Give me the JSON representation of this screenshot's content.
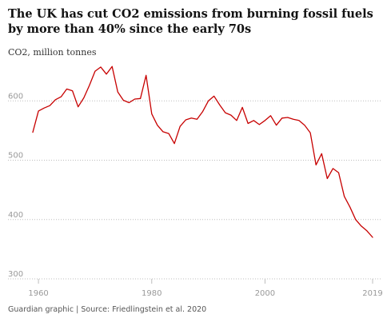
{
  "header": {
    "title": "The UK has cut CO2 emissions from burning fossil fuels by more than 40% since the early 70s",
    "subtitle": "CO2, million tonnes"
  },
  "footer": {
    "source": "Guardian graphic | Source: Friedlingstein et al. 2020"
  },
  "colors": {
    "line": "#c70000",
    "grid": "#bdbdbd",
    "tick_text": "#999999"
  },
  "chart_data": {
    "type": "line",
    "title": "The UK has cut CO2 emissions from burning fossil fuels by more than 40% since the early 70s",
    "ylabel": "CO2, million tonnes",
    "xlabel": "",
    "xlim": [
      1957,
      2020
    ],
    "ylim": [
      300,
      700
    ],
    "x_ticks": [
      1960,
      1980,
      2000,
      2019
    ],
    "y_ticks": [
      300,
      400,
      500,
      600
    ],
    "grid": "horizontal dotted",
    "series": [
      {
        "x": [
          1959,
          1960,
          1961,
          1962,
          1963,
          1964,
          1965,
          1966,
          1967,
          1968,
          1969,
          1970,
          1971,
          1972,
          1973,
          1974,
          1975,
          1976,
          1977,
          1978,
          1979,
          1980,
          1981,
          1982,
          1983,
          1984,
          1985,
          1986,
          1987,
          1988,
          1989,
          1990,
          1991,
          1992,
          1993,
          1994,
          1995,
          1996,
          1997,
          1998,
          1999,
          2000,
          2001,
          2002,
          2003,
          2004,
          2005,
          2006,
          2007,
          2008,
          2009,
          2010,
          2011,
          2012,
          2013,
          2014,
          2015,
          2016,
          2017,
          2018,
          2019
        ],
        "values": [
          547,
          583,
          588,
          592,
          602,
          607,
          620,
          617,
          590,
          605,
          626,
          650,
          657,
          645,
          658,
          615,
          601,
          597,
          603,
          604,
          643,
          578,
          559,
          548,
          545,
          528,
          557,
          568,
          571,
          569,
          582,
          600,
          608,
          593,
          580,
          576,
          567,
          589,
          562,
          567,
          560,
          567,
          575,
          559,
          571,
          572,
          569,
          567,
          559,
          546,
          492,
          511,
          469,
          486,
          479,
          439,
          421,
          400,
          389,
          381,
          370
        ]
      }
    ]
  }
}
